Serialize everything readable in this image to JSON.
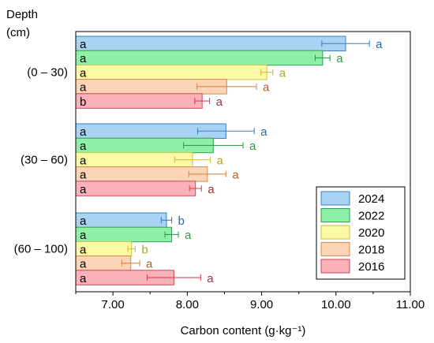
{
  "header": {
    "depth_label": "Depth",
    "unit_label": "(cm)"
  },
  "chart_data": {
    "type": "bar",
    "orientation": "horizontal",
    "xlabel": "Carbon content (g·kg⁻¹)",
    "ylabel": "Depth (cm)",
    "xlim": [
      6.5,
      11.0
    ],
    "xticks": [
      "7.00",
      "8.00",
      "9.00",
      "10.00",
      "11.00"
    ],
    "xtick_values": [
      7,
      8,
      9,
      10,
      11
    ],
    "categories": [
      "(0 – 30)",
      "(30 – 60)",
      "(60 – 100)"
    ],
    "grid": false,
    "legend_position": "bottom-right",
    "series": [
      {
        "name": "2024",
        "color": "#aad2f2",
        "edge": "#3a7fc4",
        "letter_color": "#2a65a8",
        "values": [
          10.13,
          8.52,
          7.72
        ],
        "errors": [
          0.32,
          0.38,
          0.07
        ],
        "inner_labels": [
          "a",
          "a",
          "a"
        ],
        "outer_labels": [
          "a",
          "a",
          "b"
        ]
      },
      {
        "name": "2022",
        "color": "#8ef0a8",
        "edge": "#2fa04a",
        "letter_color": "#2e9a42",
        "values": [
          9.82,
          8.35,
          7.79
        ],
        "errors": [
          0.1,
          0.4,
          0.09
        ],
        "inner_labels": [
          "a",
          "a",
          "a"
        ],
        "outer_labels": [
          "a",
          "a",
          "a"
        ]
      },
      {
        "name": "2020",
        "color": "#fbf9a6",
        "edge": "#c9c23a",
        "letter_color": "#b3a323",
        "values": [
          9.07,
          8.07,
          7.25
        ],
        "errors": [
          0.08,
          0.24,
          0.05
        ],
        "inner_labels": [
          "a",
          "a",
          "a"
        ],
        "outer_labels": [
          "a",
          "a",
          "b"
        ]
      },
      {
        "name": "2018",
        "color": "#fbd5b5",
        "edge": "#d9874c",
        "letter_color": "#b65a24",
        "values": [
          8.53,
          8.27,
          7.24
        ],
        "errors": [
          0.4,
          0.25,
          0.12
        ],
        "inner_labels": [
          "a",
          "a",
          "a"
        ],
        "outer_labels": [
          "a",
          "a",
          "a"
        ]
      },
      {
        "name": "2016",
        "color": "#fbb1b8",
        "edge": "#d2465a",
        "letter_color": "#b02a36",
        "values": [
          8.2,
          8.11,
          7.82
        ],
        "errors": [
          0.1,
          0.08,
          0.36
        ],
        "inner_labels": [
          "b",
          "a",
          "a"
        ],
        "outer_labels": [
          "a",
          "a",
          "a"
        ]
      }
    ],
    "legend_order": [
      "2024",
      "2022",
      "2020",
      "2018",
      "2016"
    ]
  }
}
